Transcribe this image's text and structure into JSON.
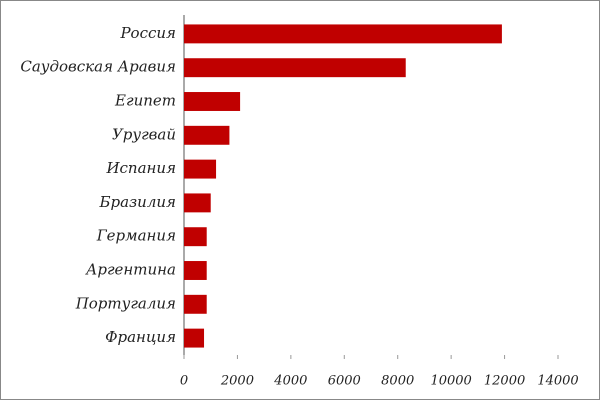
{
  "chart_data": {
    "type": "hbar",
    "categories": [
      "Россия",
      "Саудовская Аравия",
      "Египет",
      "Уругвай",
      "Испания",
      "Бразилия",
      "Германия",
      "Аргентина",
      "Португалия",
      "Франция"
    ],
    "values": [
      11900,
      8300,
      2100,
      1700,
      1200,
      1000,
      850,
      850,
      850,
      750
    ],
    "color": "#c00000",
    "xlim": [
      0,
      14000
    ],
    "xticks": [
      0,
      2000,
      4000,
      6000,
      8000,
      10000,
      12000,
      14000
    ]
  }
}
